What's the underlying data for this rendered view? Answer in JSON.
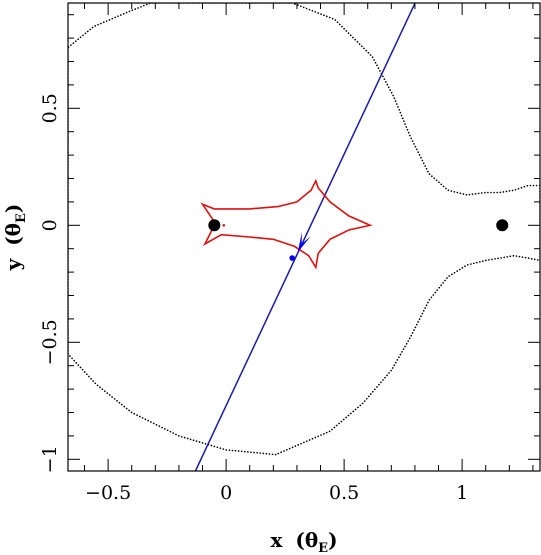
{
  "chart_data": {
    "type": "scatter",
    "title": "",
    "xlabel": {
      "main": "x",
      "open": "(",
      "sym": "θ",
      "sub": "E",
      "close": ")"
    },
    "ylabel": {
      "main": "y",
      "open": "(",
      "sym": "θ",
      "sub": "E",
      "close": ")"
    },
    "xlim": [
      -0.67,
      1.33
    ],
    "ylim": [
      -1.05,
      0.95
    ],
    "x_ticks": [
      {
        "value": -0.5,
        "label": "−0.5"
      },
      {
        "value": 0,
        "label": "0"
      },
      {
        "value": 0.5,
        "label": "0.5"
      },
      {
        "value": 1,
        "label": "1"
      }
    ],
    "y_ticks": [
      {
        "value": -1,
        "label": "−1"
      },
      {
        "value": -0.5,
        "label": "−0.5"
      },
      {
        "value": 0,
        "label": "0"
      },
      {
        "value": 0.5,
        "label": "0.5"
      }
    ],
    "grid": false,
    "critical_curve": {
      "color": "#000000",
      "style": "dotted",
      "points": [
        [
          0.21,
          -0.98
        ],
        [
          0.0,
          -0.96
        ],
        [
          -0.2,
          -0.9
        ],
        [
          -0.4,
          -0.8
        ],
        [
          -0.55,
          -0.68
        ],
        [
          -0.67,
          -0.55
        ],
        [
          -0.67,
          0.76
        ],
        [
          -0.56,
          0.85
        ],
        [
          -0.42,
          0.91
        ],
        [
          -0.32,
          0.95
        ],
        [
          0.28,
          0.95
        ],
        [
          0.46,
          0.88
        ],
        [
          0.62,
          0.72
        ],
        [
          0.71,
          0.55
        ],
        [
          0.78,
          0.38
        ],
        [
          0.86,
          0.22
        ],
        [
          0.94,
          0.15
        ],
        [
          1.02,
          0.13
        ],
        [
          1.1,
          0.14
        ],
        [
          1.16,
          0.14
        ],
        [
          1.22,
          0.15
        ],
        [
          1.28,
          0.17
        ],
        [
          1.33,
          0.17
        ],
        [
          1.33,
          -0.15
        ],
        [
          1.28,
          -0.14
        ],
        [
          1.22,
          -0.13
        ],
        [
          1.16,
          -0.14
        ],
        [
          1.1,
          -0.15
        ],
        [
          1.02,
          -0.17
        ],
        [
          0.94,
          -0.22
        ],
        [
          0.86,
          -0.32
        ],
        [
          0.78,
          -0.48
        ],
        [
          0.7,
          -0.62
        ],
        [
          0.58,
          -0.76
        ],
        [
          0.44,
          -0.88
        ],
        [
          0.21,
          -0.98
        ]
      ]
    },
    "caustic": {
      "color": "#dd1111",
      "style": "solid",
      "points": [
        [
          -0.1,
          0.09
        ],
        [
          -0.05,
          0.07
        ],
        [
          0.1,
          0.07
        ],
        [
          0.22,
          0.08
        ],
        [
          0.3,
          0.1
        ],
        [
          0.36,
          0.15
        ],
        [
          0.38,
          0.19
        ],
        [
          0.39,
          0.16
        ],
        [
          0.44,
          0.1
        ],
        [
          0.52,
          0.04
        ],
        [
          0.61,
          0.0
        ],
        [
          0.52,
          -0.02
        ],
        [
          0.44,
          -0.06
        ],
        [
          0.39,
          -0.12
        ],
        [
          0.38,
          -0.18
        ],
        [
          0.35,
          -0.13
        ],
        [
          0.29,
          -0.09
        ],
        [
          0.2,
          -0.06
        ],
        [
          0.1,
          -0.05
        ],
        [
          -0.02,
          -0.04
        ],
        [
          -0.09,
          -0.08
        ],
        [
          -0.06,
          -0.02
        ],
        [
          -0.04,
          0.0
        ],
        [
          -0.06,
          0.03
        ],
        [
          -0.1,
          0.09
        ]
      ],
      "inner_dot": [
        -0.01,
        0.0
      ]
    },
    "lens_masses": [
      {
        "x": -0.05,
        "y": 0.0
      },
      {
        "x": 1.17,
        "y": 0.0
      }
    ],
    "trajectory": {
      "color": "#1a1aaa",
      "x1": -0.13,
      "y1": -1.05,
      "x2": 0.81,
      "y2": 0.97
    },
    "source_arrow": {
      "x": 0.32,
      "y": -0.08,
      "color": "#0000ee"
    },
    "source_dot": {
      "x": 0.28,
      "y": -0.14,
      "color": "#0000ee"
    }
  }
}
